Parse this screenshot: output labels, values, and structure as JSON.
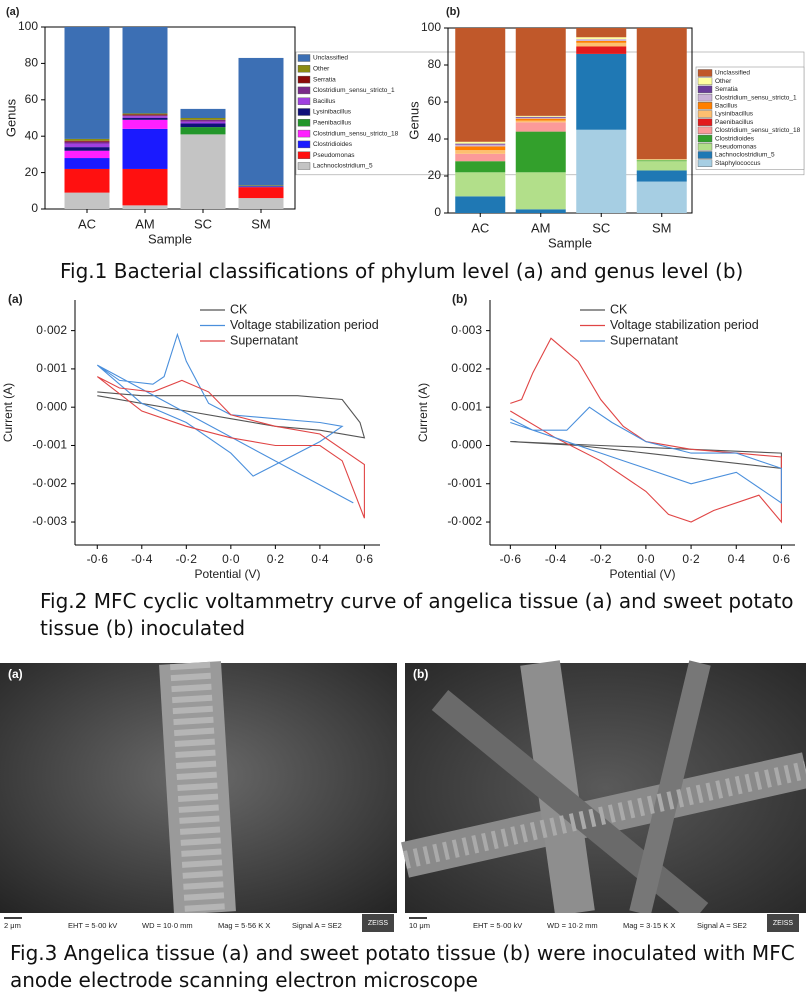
{
  "chart_data": [
    {
      "type": "stacked_bar",
      "panel": "(a)",
      "x_label": "Sample",
      "y_label": "Genus",
      "categories": [
        "AC",
        "AM",
        "SC",
        "SM"
      ],
      "ylim": [
        0,
        100
      ],
      "yticks": [
        0,
        20,
        40,
        60,
        80,
        100
      ],
      "series": [
        {
          "name": "Lachnoclostridium_5",
          "color": "#c4c4c4",
          "values": [
            9,
            2,
            41,
            6
          ]
        },
        {
          "name": "Pseudomonas",
          "color": "#ff1010",
          "values": [
            13,
            20,
            0,
            6
          ]
        },
        {
          "name": "Clostridioides",
          "color": "#1a1aff",
          "values": [
            6,
            22,
            0,
            0.5
          ]
        },
        {
          "name": "Clostridium_sensu_stricto_18",
          "color": "#ff20ff",
          "values": [
            4,
            5,
            0,
            0
          ]
        },
        {
          "name": "Paenibacillus",
          "color": "#22962a",
          "values": [
            0,
            0,
            4,
            0
          ]
        },
        {
          "name": "Lysinibacillus",
          "color": "#10107a",
          "values": [
            2,
            1,
            2,
            0
          ]
        },
        {
          "name": "Bacillus",
          "color": "#a040e0",
          "values": [
            2,
            1,
            1,
            0
          ]
        },
        {
          "name": "Clostridium_sensu_stricto_1",
          "color": "#7a2a8a",
          "values": [
            1,
            0.5,
            1,
            0
          ]
        },
        {
          "name": "Serratia",
          "color": "#8b0a0a",
          "values": [
            0.5,
            0.5,
            0,
            0
          ]
        },
        {
          "name": "Other",
          "color": "#8b8b10",
          "values": [
            1,
            0.5,
            1,
            0.5
          ]
        },
        {
          "name": "Unclassified",
          "color": "#3c6fb4",
          "values": [
            61.5,
            47.5,
            5,
            70
          ]
        }
      ]
    },
    {
      "type": "stacked_bar",
      "panel": "(b)",
      "x_label": "Sample",
      "y_label": "Genus",
      "categories": [
        "AC",
        "AM",
        "SC",
        "SM"
      ],
      "ylim": [
        0,
        100
      ],
      "yticks": [
        0,
        20,
        40,
        60,
        80,
        100
      ],
      "series": [
        {
          "name": "Staphylococcus",
          "color": "#a6cee3",
          "values": [
            0,
            0,
            45,
            17
          ]
        },
        {
          "name": "Lachnoclostridium_5",
          "color": "#1f78b4",
          "values": [
            9,
            2,
            41,
            6
          ]
        },
        {
          "name": "Pseudomonas",
          "color": "#b2df8a",
          "values": [
            13,
            20,
            0,
            5
          ]
        },
        {
          "name": "Clostridioides",
          "color": "#33a02c",
          "values": [
            6,
            22,
            0,
            0.5
          ]
        },
        {
          "name": "Clostridium_sensu_stricto_18",
          "color": "#fb9a99",
          "values": [
            4,
            5,
            0,
            0
          ]
        },
        {
          "name": "Paenibacillus",
          "color": "#e31a1c",
          "values": [
            0,
            0,
            4,
            0
          ]
        },
        {
          "name": "Lysinibacillus",
          "color": "#fdbf6f",
          "values": [
            2,
            1,
            2,
            0
          ]
        },
        {
          "name": "Bacillus",
          "color": "#ff7f00",
          "values": [
            2,
            1,
            1,
            0
          ]
        },
        {
          "name": "Clostridium_sensu_stricto_1",
          "color": "#cab2d6",
          "values": [
            1,
            0.5,
            1,
            0
          ]
        },
        {
          "name": "Serratia",
          "color": "#6a3d9a",
          "values": [
            0.5,
            0.5,
            0,
            0
          ]
        },
        {
          "name": "Other",
          "color": "#ffffa0",
          "values": [
            1,
            0.5,
            1,
            0.5
          ]
        },
        {
          "name": "Unclassified",
          "color": "#c0582a",
          "values": [
            61.5,
            47.5,
            5,
            71
          ]
        }
      ]
    },
    {
      "type": "line",
      "panel": "(a)",
      "x_label": "Potential (V)",
      "y_label": "Current (A)",
      "xlim": [
        -0.7,
        0.67
      ],
      "ylim": [
        -0.0036,
        0.0028
      ],
      "xticks": [
        {
          "value": -0.6,
          "label": "-0·6"
        },
        {
          "value": -0.4,
          "label": "-0·4"
        },
        {
          "value": -0.2,
          "label": "-0·2"
        },
        {
          "value": 0,
          "label": "0·0"
        },
        {
          "value": 0.2,
          "label": "0·2"
        },
        {
          "value": 0.4,
          "label": "0·4"
        },
        {
          "value": 0.6,
          "label": "0·6"
        }
      ],
      "yticks": [
        {
          "value": -0.003,
          "label": "-0·003"
        },
        {
          "value": -0.002,
          "label": "-0·002"
        },
        {
          "value": -0.001,
          "label": "-0·001"
        },
        {
          "value": 0,
          "label": "0·000"
        },
        {
          "value": 0.001,
          "label": "0·001"
        },
        {
          "value": 0.002,
          "label": "0·002"
        }
      ],
      "series": [
        {
          "name": "CK",
          "color": "#555555",
          "x": [
            -0.6,
            -0.4,
            -0.2,
            0,
            0.2,
            0.4,
            0.6,
            0.58,
            0.5,
            0.3,
            0,
            -0.4,
            -0.6
          ],
          "values": [
            0.0003,
            0.0001,
            -0.0001,
            -0.0003,
            -0.0005,
            -0.0006,
            -0.0008,
            -0.0004,
            0.0002,
            0.0003,
            0.0003,
            0.0003,
            0.0004
          ]
        },
        {
          "name": "Voltage stabilization period",
          "color": "#4a8fdc",
          "x": [
            -0.6,
            -0.5,
            -0.35,
            -0.3,
            -0.24,
            -0.2,
            -0.1,
            0,
            0.2,
            0.4,
            0.5,
            0.4,
            0.2,
            0.1,
            0,
            -0.2,
            -0.4,
            -0.6,
            0.55
          ],
          "values": [
            0.0011,
            0.0007,
            0.0006,
            0.0008,
            0.0019,
            0.0012,
            0.0001,
            -0.0002,
            -0.0003,
            -0.0004,
            -0.0005,
            -0.0009,
            -0.0015,
            -0.0018,
            -0.0012,
            -0.0004,
            0.0001,
            0.0011,
            -0.0025
          ]
        },
        {
          "name": "Supernatant",
          "color": "#e04545",
          "x": [
            -0.6,
            -0.4,
            -0.2,
            0,
            0.2,
            0.4,
            0.5,
            0.6,
            0.6,
            0.4,
            0.2,
            0,
            -0.1,
            -0.22,
            -0.35,
            -0.5,
            -0.6
          ],
          "values": [
            0.0008,
            -0.0001,
            -0.0005,
            -0.0008,
            -0.001,
            -0.001,
            -0.0014,
            -0.0029,
            -0.0015,
            -0.0007,
            -0.0005,
            -0.0002,
            0.0004,
            0.0007,
            0.0004,
            0.0005,
            0.0008
          ]
        }
      ]
    },
    {
      "type": "line",
      "panel": "(b)",
      "x_label": "Potential (V)",
      "y_label": "Current (A)",
      "xlim": [
        -0.69,
        0.66
      ],
      "ylim": [
        -0.0026,
        0.0038
      ],
      "xticks": [
        {
          "value": -0.6,
          "label": "-0·6"
        },
        {
          "value": -0.4,
          "label": "-0·4"
        },
        {
          "value": -0.2,
          "label": "-0·2"
        },
        {
          "value": 0,
          "label": "0·0"
        },
        {
          "value": 0.2,
          "label": "0·2"
        },
        {
          "value": 0.4,
          "label": "0·4"
        },
        {
          "value": 0.6,
          "label": "0·6"
        }
      ],
      "yticks": [
        {
          "value": -0.002,
          "label": "-0·002"
        },
        {
          "value": -0.001,
          "label": "-0·001"
        },
        {
          "value": 0,
          "label": "0·000"
        },
        {
          "value": 0.001,
          "label": "0·001"
        },
        {
          "value": 0.002,
          "label": "0·002"
        },
        {
          "value": 0.003,
          "label": "0·003"
        }
      ],
      "series": [
        {
          "name": "CK",
          "color": "#555555",
          "x": [
            -0.6,
            -0.2,
            0.2,
            0.6,
            0.6,
            0.3,
            0,
            -0.3,
            -0.6
          ],
          "values": [
            0.0001,
            0,
            -0.0001,
            -0.0002,
            -0.0006,
            -0.0004,
            -0.0002,
            0,
            0.0001
          ]
        },
        {
          "name": "Voltage stabilization period",
          "color": "#e04545",
          "x": [
            -0.6,
            -0.55,
            -0.5,
            -0.42,
            -0.3,
            -0.2,
            -0.1,
            0,
            0.2,
            0.4,
            0.6,
            0.6,
            0.5,
            0.3,
            0.2,
            0.1,
            0,
            -0.2,
            -0.4,
            -0.6
          ],
          "values": [
            0.0011,
            0.0012,
            0.0019,
            0.0028,
            0.0022,
            0.0012,
            0.0005,
            0.0001,
            -0.0001,
            -0.0002,
            -0.0003,
            -0.002,
            -0.0013,
            -0.0017,
            -0.002,
            -0.0018,
            -0.0012,
            -0.0004,
            0.0002,
            0.0009
          ]
        },
        {
          "name": "Supernatant",
          "color": "#4a8fdc",
          "x": [
            -0.6,
            -0.5,
            -0.35,
            -0.25,
            -0.15,
            0,
            0.2,
            0.4,
            0.6,
            0.6,
            0.4,
            0.2,
            0,
            -0.2,
            -0.4,
            -0.6
          ],
          "values": [
            0.0007,
            0.0004,
            0.0004,
            0.001,
            0.0006,
            0.0001,
            -0.0002,
            -0.0002,
            -0.0006,
            -0.0015,
            -0.0007,
            -0.001,
            -0.0006,
            -0.0002,
            0.0002,
            0.0006
          ]
        }
      ]
    }
  ],
  "captions": {
    "fig1": "Fig.1 Bacterial classifications of phylum level (a) and genus level (b)",
    "fig2": "Fig.2 MFC cyclic voltammetry curve of angelica tissue (a) and sweet potato tissue (b) inoculated",
    "fig3": "Fig.3  Angelica tissue (a) and sweet potato tissue (b) were inoculated with MFC anode electrode scanning electron microscope"
  },
  "sem": [
    {
      "panel": "(a)",
      "scale": "2 μm",
      "eht": "EHT = 5·00 kV",
      "wd": "WD = 10·0 mm",
      "mag": "Mag = 5·56 K X",
      "signal": "Signal A = SE2",
      "brand": "ZEISS"
    },
    {
      "panel": "(b)",
      "scale": "10 μm",
      "eht": "EHT = 5·00 kV",
      "wd": "WD = 10·2 mm",
      "mag": "Mag = 3·15 K X",
      "signal": "Signal A = SE2",
      "brand": "ZEISS"
    }
  ]
}
